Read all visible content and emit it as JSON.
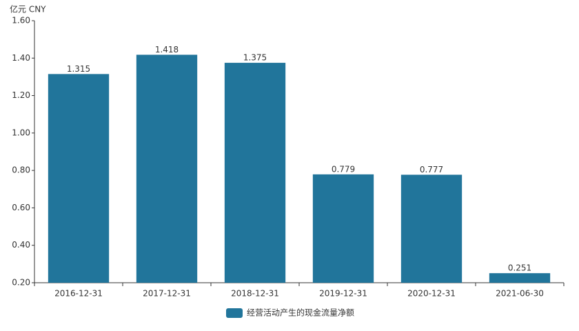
{
  "chart_data": {
    "type": "bar",
    "unit_label": "亿元 CNY",
    "categories": [
      "2016-12-31",
      "2017-12-31",
      "2018-12-31",
      "2019-12-31",
      "2020-12-31",
      "2021-06-30"
    ],
    "series": [
      {
        "name": "经营活动产生的现金流量净额",
        "color": "#21759b",
        "values": [
          1.315,
          1.418,
          1.375,
          0.779,
          0.777,
          0.251
        ]
      }
    ],
    "ylim": [
      0.2,
      1.6
    ],
    "yticks": [
      {
        "value": 0.2,
        "label": "0.20"
      },
      {
        "value": 0.4,
        "label": "0.40"
      },
      {
        "value": 0.6,
        "label": "0.60"
      },
      {
        "value": 0.8,
        "label": "0.80"
      },
      {
        "value": 1.0,
        "label": "1.00"
      },
      {
        "value": 1.2,
        "label": "1.20"
      },
      {
        "value": 1.4,
        "label": "1.40"
      },
      {
        "value": 1.6,
        "label": "1.60"
      }
    ],
    "grid": false,
    "legend": "bottom"
  }
}
